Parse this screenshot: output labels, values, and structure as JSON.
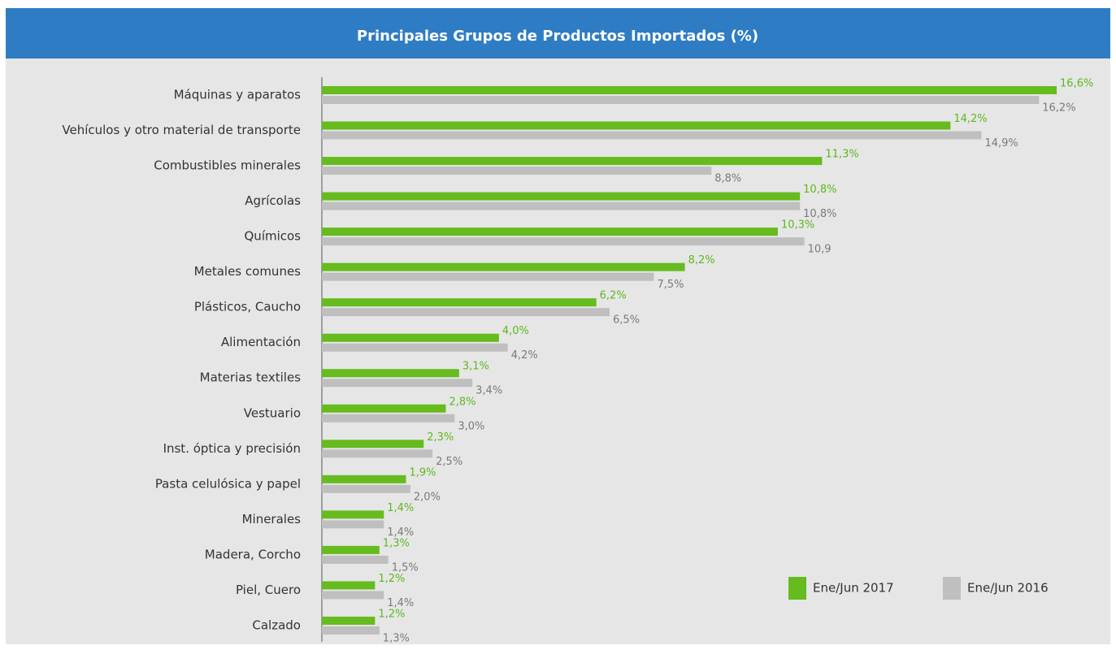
{
  "chart_data": {
    "type": "barh",
    "title": "Principales Grupos de Productos Importados (%)",
    "categories": [
      "Máquinas y aparatos",
      "Vehículos y otro material de transporte",
      "Combustibles minerales",
      "Agrícolas",
      "Químicos",
      "Metales comunes",
      "Plásticos, Caucho",
      "Alimentación",
      "Materias textiles",
      "Vestuario",
      "Inst. óptica y precisión",
      "Pasta celulósica y papel",
      "Minerales",
      "Madera, Corcho",
      "Piel, Cuero",
      "Calzado"
    ],
    "series": [
      {
        "name": "Ene/Jun 2017",
        "color": "#66bb1e",
        "values": [
          16.6,
          14.2,
          11.3,
          10.8,
          10.3,
          8.2,
          6.2,
          4.0,
          3.1,
          2.8,
          2.3,
          1.9,
          1.4,
          1.3,
          1.2,
          1.2
        ],
        "value_labels": [
          "16,6%",
          "14,2%",
          "11,3%",
          "10,8%",
          "10,3%",
          "8,2%",
          "6,2%",
          "4,0%",
          "3,1%",
          "2,8%",
          "2,3%",
          "1,9%",
          "1,4%",
          "1,3%",
          "1,2%",
          "1,2%"
        ]
      },
      {
        "name": "Ene/Jun 2016",
        "color": "#bfbfbf",
        "values": [
          16.2,
          14.9,
          8.8,
          10.8,
          10.9,
          7.5,
          6.5,
          4.2,
          3.4,
          3.0,
          2.5,
          2.0,
          1.4,
          1.5,
          1.4,
          1.3
        ],
        "value_labels": [
          "16,2%",
          "14,9%",
          "8,8%",
          "10,8%",
          "10,9",
          "7,5%",
          "6,5%",
          "4,2%",
          "3,4%",
          "3,0%",
          "2,5%",
          "2,0%",
          "1,4%",
          "1,5%",
          "1,4%",
          "1,3%"
        ]
      }
    ],
    "legend": "lower right"
  }
}
